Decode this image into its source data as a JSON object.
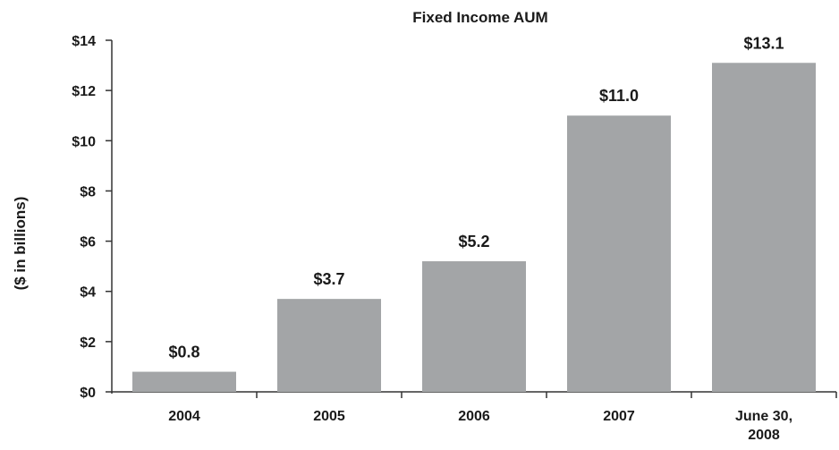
{
  "chart_data": {
    "type": "bar",
    "title": "Fixed Income AUM",
    "ylabel": "($ in billions)",
    "xlabel": "",
    "categories": [
      "2004",
      "2005",
      "2006",
      "2007",
      "June 30, 2008"
    ],
    "values": [
      0.8,
      3.7,
      5.2,
      11.0,
      13.1
    ],
    "data_labels": [
      "$0.8",
      "$3.7",
      "$5.2",
      "$11.0",
      "$13.1"
    ],
    "ylim": [
      0,
      14
    ],
    "yticks": [
      0,
      2,
      4,
      6,
      8,
      10,
      12,
      14
    ],
    "ytick_labels": [
      "$0",
      "$2",
      "$4",
      "$6",
      "$8",
      "$10",
      "$12",
      "$14"
    ],
    "bar_color": "#a3a5a7",
    "grid": false,
    "legend": "none"
  }
}
